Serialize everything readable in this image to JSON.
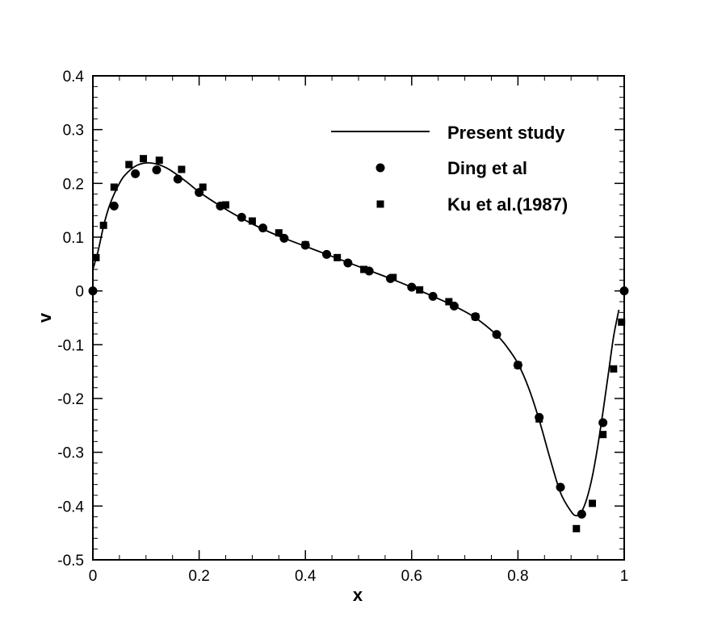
{
  "chart_data": {
    "type": "scatter",
    "title": "",
    "xlabel": "x",
    "ylabel": "v",
    "xlim": [
      0,
      1
    ],
    "ylim": [
      -0.5,
      0.4
    ],
    "x_ticks": [
      0,
      0.2,
      0.4,
      0.6,
      0.8,
      1
    ],
    "x_tick_labels": [
      "0",
      "0.2",
      "0.4",
      "0.6",
      "0.8",
      "1"
    ],
    "y_ticks": [
      -0.5,
      -0.4,
      -0.3,
      -0.2,
      -0.1,
      0,
      0.1,
      0.2,
      0.3,
      0.4
    ],
    "y_tick_labels": [
      "-0.5",
      "-0.4",
      "-0.3",
      "-0.2",
      "-0.1",
      "0",
      "0.1",
      "0.2",
      "0.3",
      "0.4"
    ],
    "grid": false,
    "legend_position": "top-right",
    "series": [
      {
        "name": "Present study",
        "type": "line",
        "color": "#000000",
        "x": [
          0.0,
          0.01,
          0.02,
          0.03,
          0.04,
          0.05,
          0.06,
          0.08,
          0.1,
          0.12,
          0.14,
          0.16,
          0.18,
          0.2,
          0.24,
          0.28,
          0.32,
          0.36,
          0.4,
          0.44,
          0.48,
          0.52,
          0.56,
          0.6,
          0.64,
          0.68,
          0.72,
          0.76,
          0.78,
          0.8,
          0.82,
          0.84,
          0.86,
          0.88,
          0.9,
          0.91,
          0.92,
          0.93,
          0.94,
          0.95,
          0.96,
          0.97,
          0.98,
          0.99
        ],
        "y": [
          0.04,
          0.075,
          0.12,
          0.155,
          0.18,
          0.2,
          0.215,
          0.232,
          0.238,
          0.236,
          0.228,
          0.215,
          0.2,
          0.184,
          0.158,
          0.135,
          0.115,
          0.098,
          0.083,
          0.068,
          0.053,
          0.038,
          0.023,
          0.007,
          -0.01,
          -0.028,
          -0.05,
          -0.082,
          -0.105,
          -0.135,
          -0.18,
          -0.24,
          -0.31,
          -0.375,
          -0.41,
          -0.418,
          -0.41,
          -0.385,
          -0.345,
          -0.29,
          -0.225,
          -0.155,
          -0.085,
          -0.035
        ]
      },
      {
        "name": "Ding et al",
        "type": "scatter",
        "marker": "circle",
        "color": "#000000",
        "x": [
          0.0,
          0.04,
          0.08,
          0.12,
          0.16,
          0.2,
          0.24,
          0.28,
          0.32,
          0.36,
          0.4,
          0.44,
          0.48,
          0.52,
          0.56,
          0.6,
          0.64,
          0.68,
          0.72,
          0.76,
          0.8,
          0.84,
          0.88,
          0.92,
          0.96,
          1.0
        ],
        "y": [
          0.0,
          0.158,
          0.218,
          0.225,
          0.208,
          0.183,
          0.158,
          0.137,
          0.117,
          0.098,
          0.085,
          0.068,
          0.052,
          0.037,
          0.023,
          0.007,
          -0.01,
          -0.028,
          -0.048,
          -0.081,
          -0.138,
          -0.235,
          -0.365,
          -0.415,
          -0.245,
          0.0
        ]
      },
      {
        "name": "Ku et al.(1987)",
        "type": "scatter",
        "marker": "square",
        "color": "#000000",
        "x": [
          0.006,
          0.02,
          0.04,
          0.068,
          0.095,
          0.125,
          0.167,
          0.207,
          0.25,
          0.3,
          0.35,
          0.4,
          0.46,
          0.51,
          0.565,
          0.615,
          0.67,
          0.72,
          0.8,
          0.84,
          0.91,
          0.94,
          0.96,
          0.98,
          0.995
        ],
        "y": [
          0.062,
          0.122,
          0.193,
          0.235,
          0.246,
          0.243,
          0.226,
          0.193,
          0.16,
          0.13,
          0.108,
          0.086,
          0.062,
          0.04,
          0.025,
          0.002,
          -0.02,
          -0.048,
          -0.138,
          -0.238,
          -0.442,
          -0.395,
          -0.267,
          -0.145,
          -0.058
        ]
      }
    ]
  }
}
